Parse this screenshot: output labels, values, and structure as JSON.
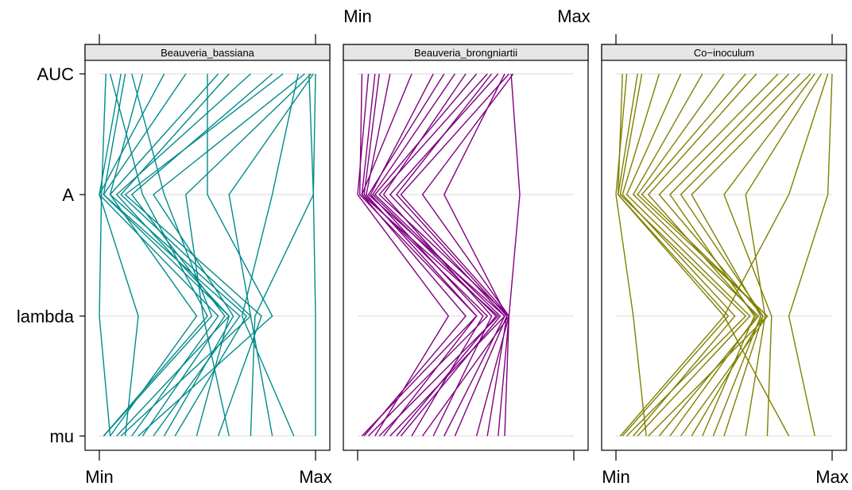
{
  "chart_data": {
    "type": "parallel-coordinates",
    "variables": [
      "mu",
      "lambda",
      "A",
      "AUC"
    ],
    "axis_min_label": "Min",
    "axis_max_label": "Max",
    "grid": true,
    "panels": [
      {
        "name": "Beauveria_bassiana",
        "color": "#008B8B",
        "lines": [
          [
            0.02,
            0.5,
            0.2,
            0.05
          ],
          [
            0.08,
            0.6,
            0.02,
            0.12
          ],
          [
            0.15,
            0.55,
            0.0,
            0.3
          ],
          [
            0.05,
            0.45,
            0.05,
            0.2
          ],
          [
            0.1,
            0.7,
            0.1,
            0.6
          ],
          [
            0.2,
            0.58,
            0.15,
            0.8
          ],
          [
            0.3,
            0.62,
            0.25,
            0.95
          ],
          [
            0.6,
            0.48,
            0.4,
            0.98
          ],
          [
            0.7,
            0.72,
            0.99,
            0.97
          ],
          [
            1.0,
            1.0,
            0.99,
            1.0
          ],
          [
            0.05,
            0.0,
            0.01,
            0.03
          ],
          [
            0.12,
            0.18,
            0.0,
            0.1
          ],
          [
            0.25,
            0.65,
            0.02,
            0.4
          ],
          [
            0.35,
            0.68,
            0.05,
            0.55
          ],
          [
            0.45,
            0.6,
            0.08,
            0.7
          ],
          [
            0.55,
            0.75,
            0.12,
            0.85
          ],
          [
            0.8,
            0.7,
            0.6,
            0.99
          ],
          [
            0.9,
            0.66,
            0.8,
            0.92
          ],
          [
            0.02,
            0.52,
            0.3,
            0.15
          ],
          [
            0.18,
            0.8,
            0.5,
            0.5
          ]
        ]
      },
      {
        "name": "Beauveria_brongniartii",
        "color": "#800080",
        "lines": [
          [
            0.02,
            0.55,
            0.01,
            0.02
          ],
          [
            0.05,
            0.6,
            0.03,
            0.1
          ],
          [
            0.1,
            0.65,
            0.02,
            0.25
          ],
          [
            0.15,
            0.68,
            0.05,
            0.4
          ],
          [
            0.2,
            0.66,
            0.08,
            0.55
          ],
          [
            0.3,
            0.7,
            0.1,
            0.6
          ],
          [
            0.4,
            0.68,
            0.15,
            0.65
          ],
          [
            0.55,
            0.7,
            0.2,
            0.7
          ],
          [
            0.65,
            0.7,
            0.3,
            0.72
          ],
          [
            0.68,
            0.7,
            0.75,
            0.71
          ],
          [
            0.08,
            0.42,
            0.0,
            0.05
          ],
          [
            0.12,
            0.55,
            0.04,
            0.15
          ],
          [
            0.25,
            0.58,
            0.06,
            0.35
          ],
          [
            0.35,
            0.62,
            0.12,
            0.5
          ],
          [
            0.45,
            0.69,
            0.18,
            0.62
          ],
          [
            0.6,
            0.69,
            0.4,
            0.68
          ],
          [
            0.03,
            0.5,
            0.02,
            0.08
          ],
          [
            0.18,
            0.64,
            0.07,
            0.45
          ]
        ]
      },
      {
        "name": "Co−inoculum",
        "color": "#808000",
        "lines": [
          [
            0.02,
            0.5,
            0.01,
            0.03
          ],
          [
            0.05,
            0.6,
            0.02,
            0.12
          ],
          [
            0.1,
            0.62,
            0.05,
            0.3
          ],
          [
            0.15,
            0.7,
            0.1,
            0.5
          ],
          [
            0.25,
            0.65,
            0.15,
            0.65
          ],
          [
            0.35,
            0.68,
            0.2,
            0.75
          ],
          [
            0.5,
            0.68,
            0.3,
            0.85
          ],
          [
            0.7,
            0.72,
            0.5,
            0.92
          ],
          [
            0.8,
            0.5,
            0.8,
            0.98
          ],
          [
            0.92,
            0.8,
            0.98,
            1.0
          ],
          [
            0.14,
            0.08,
            0.0,
            0.05
          ],
          [
            0.08,
            0.55,
            0.03,
            0.2
          ],
          [
            0.2,
            0.66,
            0.08,
            0.4
          ],
          [
            0.3,
            0.7,
            0.12,
            0.6
          ],
          [
            0.4,
            0.64,
            0.25,
            0.8
          ],
          [
            0.6,
            0.69,
            0.6,
            0.95
          ],
          [
            0.03,
            0.52,
            0.01,
            0.1
          ],
          [
            0.45,
            0.67,
            0.35,
            0.9
          ]
        ]
      }
    ]
  }
}
